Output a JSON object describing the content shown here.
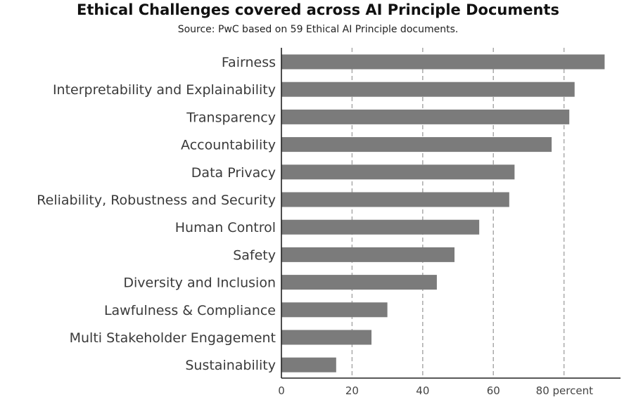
{
  "chart_data": {
    "type": "bar",
    "orientation": "horizontal",
    "title": "Ethical Challenges covered across AI Principle Documents",
    "subtitle": "Source: PwC based on 59 Ethical AI Principle documents.",
    "categories": [
      "Fairness",
      "Interpretability and Explainability",
      "Transparency",
      "Accountability",
      "Data Privacy",
      "Reliability, Robustness and Security",
      "Human Control",
      "Safety",
      "Diversity and Inclusion",
      "Lawfulness & Compliance",
      "Multi Stakeholder Engagement",
      "Sustainability"
    ],
    "values": [
      91.5,
      83,
      81.5,
      76.5,
      66,
      64.5,
      56,
      49,
      44,
      30,
      25.5,
      15.5
    ],
    "xlim": [
      0,
      96
    ],
    "xticks": [
      0,
      20,
      40,
      60,
      80
    ],
    "xtick_labels": [
      "0",
      "20",
      "40",
      "60",
      "80 percent"
    ],
    "grid": "vertical dashed",
    "bar_color": "#7b7b7b",
    "grid_color": "#aaaaaa"
  }
}
